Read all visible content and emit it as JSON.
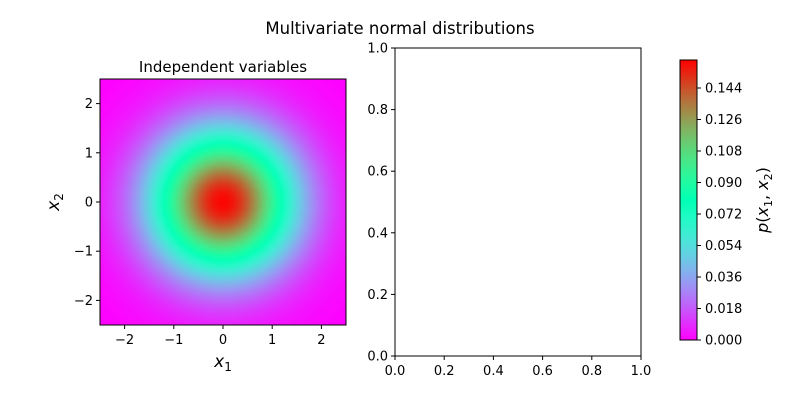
{
  "figure": {
    "suptitle": "Multivariate normal distributions"
  },
  "chart_data": [
    {
      "type": "heatmap",
      "title": "Independent variables",
      "xlabel": "x1",
      "ylabel": "x2",
      "xlim": [
        -2.5,
        2.5
      ],
      "ylim": [
        -2.5,
        2.5
      ],
      "xticks": [
        -2,
        -1,
        0,
        1,
        2
      ],
      "yticks": [
        -2,
        -1,
        0,
        1,
        2
      ],
      "xtick_labels": [
        "−2",
        "−1",
        "0",
        "1",
        "2"
      ],
      "ytick_labels": [
        "−2",
        "−1",
        "0",
        "1",
        "2"
      ],
      "distribution": {
        "mean": [
          0,
          0
        ],
        "cov": [
          [
            1,
            0
          ],
          [
            0,
            1
          ]
        ],
        "peak_density": 0.159
      },
      "colormap": "rainbow"
    },
    {
      "type": "scatter",
      "title": "",
      "xlim": [
        0.0,
        1.0
      ],
      "ylim": [
        0.0,
        1.0
      ],
      "xticks": [
        0.0,
        0.2,
        0.4,
        0.6,
        0.8,
        1.0
      ],
      "yticks": [
        0.0,
        0.2,
        0.4,
        0.6,
        0.8,
        1.0
      ],
      "xtick_labels": [
        "0.0",
        "0.2",
        "0.4",
        "0.6",
        "0.8",
        "1.0"
      ],
      "ytick_labels": [
        "0.0",
        "0.2",
        "0.4",
        "0.6",
        "0.8",
        "1.0"
      ],
      "series": []
    }
  ],
  "colorbar": {
    "label": "p(x1, x2)",
    "range": [
      0.0,
      0.16
    ],
    "ticks": [
      0.0,
      0.018,
      0.036,
      0.054,
      0.072,
      0.09,
      0.108,
      0.126,
      0.144
    ],
    "tick_labels": [
      "0.000",
      "0.018",
      "0.036",
      "0.054",
      "0.072",
      "0.090",
      "0.108",
      "0.126",
      "0.144"
    ],
    "colormap": "rainbow"
  }
}
